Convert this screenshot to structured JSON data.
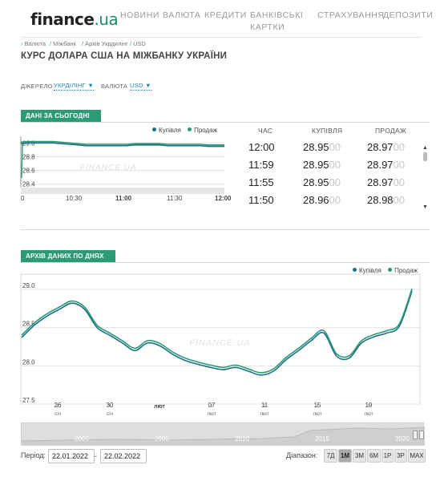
{
  "header": {
    "logo_main": "finance",
    "logo_domain": ".ua",
    "nav": [
      "НОВИНИ",
      "ВАЛЮТА",
      "КРЕДИТИ",
      "БАНКІВСЬКІ",
      "КАРТКИ",
      "СТРАХУВАННЯ",
      "ДЕПОЗИТИ"
    ]
  },
  "breadcrumb": [
    "Валюта",
    "Міжбанк",
    "Архів Укрдилінг",
    "USD"
  ],
  "page_title": "КУРС ДОЛАРА США НА МІЖБАНКУ УКРАЇНИ",
  "filters": {
    "source_label": "ДЖЕРЕЛО",
    "source_value": "УКРДІЛІНГ",
    "currency_label": "ВАЛЮТА",
    "currency_value": "USD",
    "arrow": "▼"
  },
  "today": {
    "tab": "ДАНІ ЗА СЬОГОДНІ",
    "legend": [
      "Купівля",
      "Продаж"
    ],
    "watermark": "FINANCE.UA",
    "columns": [
      "ЧАС",
      "КУПІВЛЯ",
      "ПРОДАЖ"
    ],
    "rows": [
      {
        "time": "12:00",
        "buy": "28.95",
        "buy_tail": "00",
        "sell": "28.97",
        "sell_tail": "00"
      },
      {
        "time": "11:59",
        "buy": "28.95",
        "buy_tail": "00",
        "sell": "28.97",
        "sell_tail": "00"
      },
      {
        "time": "11:55",
        "buy": "28.95",
        "buy_tail": "00",
        "sell": "28.97",
        "sell_tail": "00"
      },
      {
        "time": "11:50",
        "buy": "28.96",
        "buy_tail": "00",
        "sell": "28.98",
        "sell_tail": "00"
      }
    ]
  },
  "archive": {
    "tab": "АРХІВ ДАНИХ ПО ДНЯХ",
    "legend": [
      "Купівля",
      "Продаж"
    ],
    "watermark": "FINANCE.UA"
  },
  "navigator_years": [
    "2000",
    "2005",
    "2010",
    "2015",
    "2020"
  ],
  "period": {
    "label": "Період:",
    "from": "22.01.2022",
    "dash": "-",
    "to": "22.02.2022"
  },
  "range": {
    "label": "Діапазон:",
    "buttons": [
      "7Д",
      "1М",
      "3М",
      "6М",
      "1Р",
      "3Р",
      "MAX"
    ],
    "active": "1М"
  },
  "colors": {
    "accent": "#2b9b75",
    "buy": "#1f6f8b",
    "sell": "#2b9b75",
    "link": "#1a7fb5"
  },
  "chart_data": [
    {
      "type": "line",
      "title": "ДАНІ ЗА СЬОГОДНІ",
      "x_ticks": [
        "0",
        "10:30",
        "11:00",
        "11:30",
        "12:00"
      ],
      "y_ticks": [
        "29.0",
        "28.8",
        "28.6",
        "28.4"
      ],
      "ylim": [
        28.35,
        29.05
      ],
      "x": [
        "10:00",
        "10:05",
        "10:10",
        "10:15",
        "10:20",
        "10:25",
        "10:30",
        "10:35",
        "10:40",
        "10:45",
        "10:50",
        "10:55",
        "11:00",
        "11:05",
        "11:10",
        "11:15",
        "11:20",
        "11:25",
        "11:30",
        "11:35",
        "11:40",
        "11:45",
        "11:50",
        "11:55",
        "11:59",
        "12:00"
      ],
      "series": [
        {
          "name": "Купівля",
          "values": [
            28.99,
            29.0,
            29.0,
            29.0,
            29.0,
            28.99,
            28.98,
            28.97,
            28.96,
            28.96,
            28.96,
            28.96,
            28.96,
            28.96,
            28.97,
            28.97,
            28.97,
            28.97,
            28.96,
            28.96,
            28.96,
            28.96,
            28.96,
            28.95,
            28.95,
            28.95
          ]
        },
        {
          "name": "Продаж",
          "values": [
            29.01,
            29.02,
            29.02,
            29.02,
            29.02,
            29.01,
            29.0,
            28.99,
            28.98,
            28.98,
            28.98,
            28.98,
            28.98,
            28.98,
            28.99,
            28.99,
            28.99,
            28.99,
            28.98,
            28.98,
            28.98,
            28.98,
            28.98,
            28.97,
            28.97,
            28.97
          ]
        }
      ],
      "grid": true,
      "legend": "top-right"
    },
    {
      "type": "line",
      "title": "АРХІВ ДАНИХ ПО ДНЯХ",
      "x_ticks": [
        {
          "day": "26",
          "month": "січ"
        },
        {
          "day": "30",
          "month": "січ"
        },
        {
          "day": "",
          "month": "лют"
        },
        {
          "day": "07",
          "month": "лют"
        },
        {
          "day": "11",
          "month": "лют"
        },
        {
          "day": "15",
          "month": "лют"
        },
        {
          "day": "19",
          "month": "лют"
        }
      ],
      "y_ticks": [
        "29.0",
        "28.5",
        "28.0",
        "27.5"
      ],
      "ylim": [
        27.5,
        29.2
      ],
      "x": [
        "2022-01-22",
        "2022-01-23",
        "2022-01-24",
        "2022-01-25",
        "2022-01-26",
        "2022-01-27",
        "2022-01-28",
        "2022-01-29",
        "2022-01-30",
        "2022-01-31",
        "2022-02-01",
        "2022-02-02",
        "2022-02-03",
        "2022-02-04",
        "2022-02-05",
        "2022-02-06",
        "2022-02-07",
        "2022-02-08",
        "2022-02-09",
        "2022-02-10",
        "2022-02-11",
        "2022-02-12",
        "2022-02-13",
        "2022-02-14",
        "2022-02-15",
        "2022-02-16",
        "2022-02-17",
        "2022-02-18",
        "2022-02-19",
        "2022-02-20",
        "2022-02-21",
        "2022-02-22"
      ],
      "series": [
        {
          "name": "Купівля",
          "values": [
            28.37,
            28.53,
            28.65,
            28.74,
            28.82,
            28.74,
            28.5,
            28.4,
            28.3,
            28.2,
            28.3,
            28.26,
            28.15,
            28.07,
            28.02,
            27.98,
            27.95,
            27.98,
            27.93,
            27.88,
            27.93,
            28.08,
            28.2,
            28.33,
            28.43,
            28.13,
            28.1,
            28.3,
            28.38,
            28.43,
            28.52,
            28.98
          ]
        },
        {
          "name": "Продаж",
          "values": [
            28.4,
            28.56,
            28.68,
            28.77,
            28.85,
            28.77,
            28.53,
            28.43,
            28.33,
            28.23,
            28.33,
            28.29,
            28.18,
            28.1,
            28.05,
            28.01,
            27.98,
            28.01,
            27.96,
            27.91,
            27.96,
            28.11,
            28.23,
            28.36,
            28.46,
            28.16,
            28.13,
            28.33,
            28.41,
            28.46,
            28.55,
            29.01
          ]
        }
      ],
      "grid": true,
      "legend": "top-right"
    }
  ]
}
